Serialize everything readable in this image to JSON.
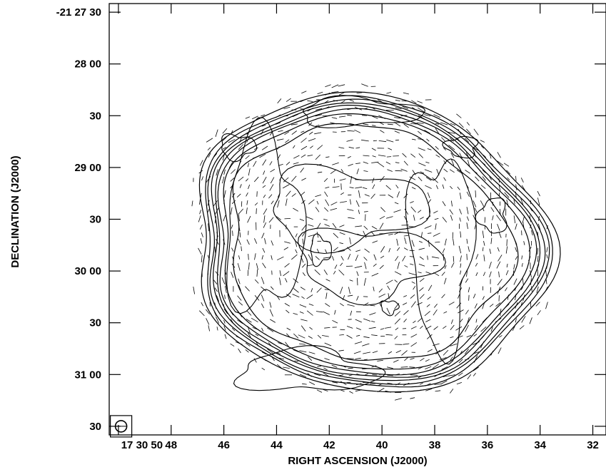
{
  "chart_data": {
    "type": "contour",
    "xlabel": "RIGHT ASCENSION (J2000)",
    "ylabel": "DECLINATION (J2000)",
    "x_ticks": [
      {
        "value_s": 50,
        "label": "17 30 50"
      },
      {
        "value_s": 48,
        "label": "48"
      },
      {
        "value_s": 46,
        "label": "46"
      },
      {
        "value_s": 44,
        "label": "44"
      },
      {
        "value_s": 42,
        "label": "42"
      },
      {
        "value_s": 40,
        "label": "40"
      },
      {
        "value_s": 38,
        "label": "38"
      },
      {
        "value_s": 36,
        "label": "36"
      },
      {
        "value_s": 34,
        "label": "34"
      },
      {
        "value_s": 32,
        "label": "32"
      }
    ],
    "y_ticks": [
      {
        "value_arcsec": 0,
        "label": "-21 27 30"
      },
      {
        "value_arcsec": 30,
        "label": "28 00"
      },
      {
        "value_arcsec": 60,
        "label": "30"
      },
      {
        "value_arcsec": 90,
        "label": "29 00"
      },
      {
        "value_arcsec": 120,
        "label": "30"
      },
      {
        "value_arcsec": 150,
        "label": "30 00"
      },
      {
        "value_arcsec": 180,
        "label": "30"
      },
      {
        "value_arcsec": 210,
        "label": "31 00"
      },
      {
        "value_arcsec": 240,
        "label": "30"
      }
    ],
    "xlim_s": [
      50.35,
      31.5
    ],
    "ylim_arcsec": [
      -5,
      245
    ],
    "source_center": {
      "ra_s": 40.9,
      "dec_offset_arcsec": 133
    },
    "beam": {
      "ra_s": 49.9,
      "dec_offset_arcsec": 240
    },
    "contours": [
      {
        "level": 1,
        "radius_arcsec": 95
      },
      {
        "level": 2,
        "radius_arcsec": 92
      },
      {
        "level": 3,
        "radius_arcsec": 90
      },
      {
        "level": 4,
        "radius_arcsec": 88
      },
      {
        "level": 5,
        "radius_arcsec": 86
      },
      {
        "level": 6,
        "radius_arcsec": 84
      },
      {
        "level": 7,
        "radius_arcsec": 81
      },
      {
        "level": 8,
        "radius_arcsec": 75
      }
    ],
    "polarization_vectors": "shown",
    "grid": false
  }
}
